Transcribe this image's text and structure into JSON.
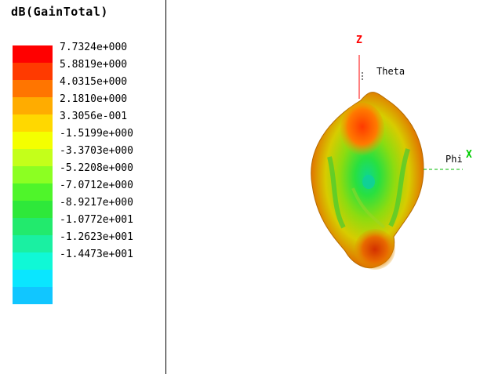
{
  "legend": {
    "title": "dB(GainTotal)",
    "colors": [
      "#ff0000",
      "#ff3a00",
      "#ff7500",
      "#ffac00",
      "#ffd800",
      "#f4ff00",
      "#c4ff1a",
      "#8cff22",
      "#4ff52a",
      "#2ee83a",
      "#22ea6d",
      "#1af0a2",
      "#10f8d6",
      "#0ae6ff",
      "#11c6ff"
    ],
    "values": [
      "7.7324e+000",
      "5.8819e+000",
      "4.0315e+000",
      "2.1810e+000",
      "3.3056e-001",
      "-1.5199e+000",
      "-3.3703e+000",
      "-5.2208e+000",
      "-7.0712e+000",
      "-8.9217e+000",
      "-1.0772e+001",
      "-1.2623e+001",
      "-1.4473e+001"
    ]
  },
  "axes": {
    "z_label": "Z",
    "z_color": "#ff0000",
    "theta_label": "Theta",
    "phi_label": "Phi",
    "x_label": "X",
    "x_color": "#00cc00"
  }
}
